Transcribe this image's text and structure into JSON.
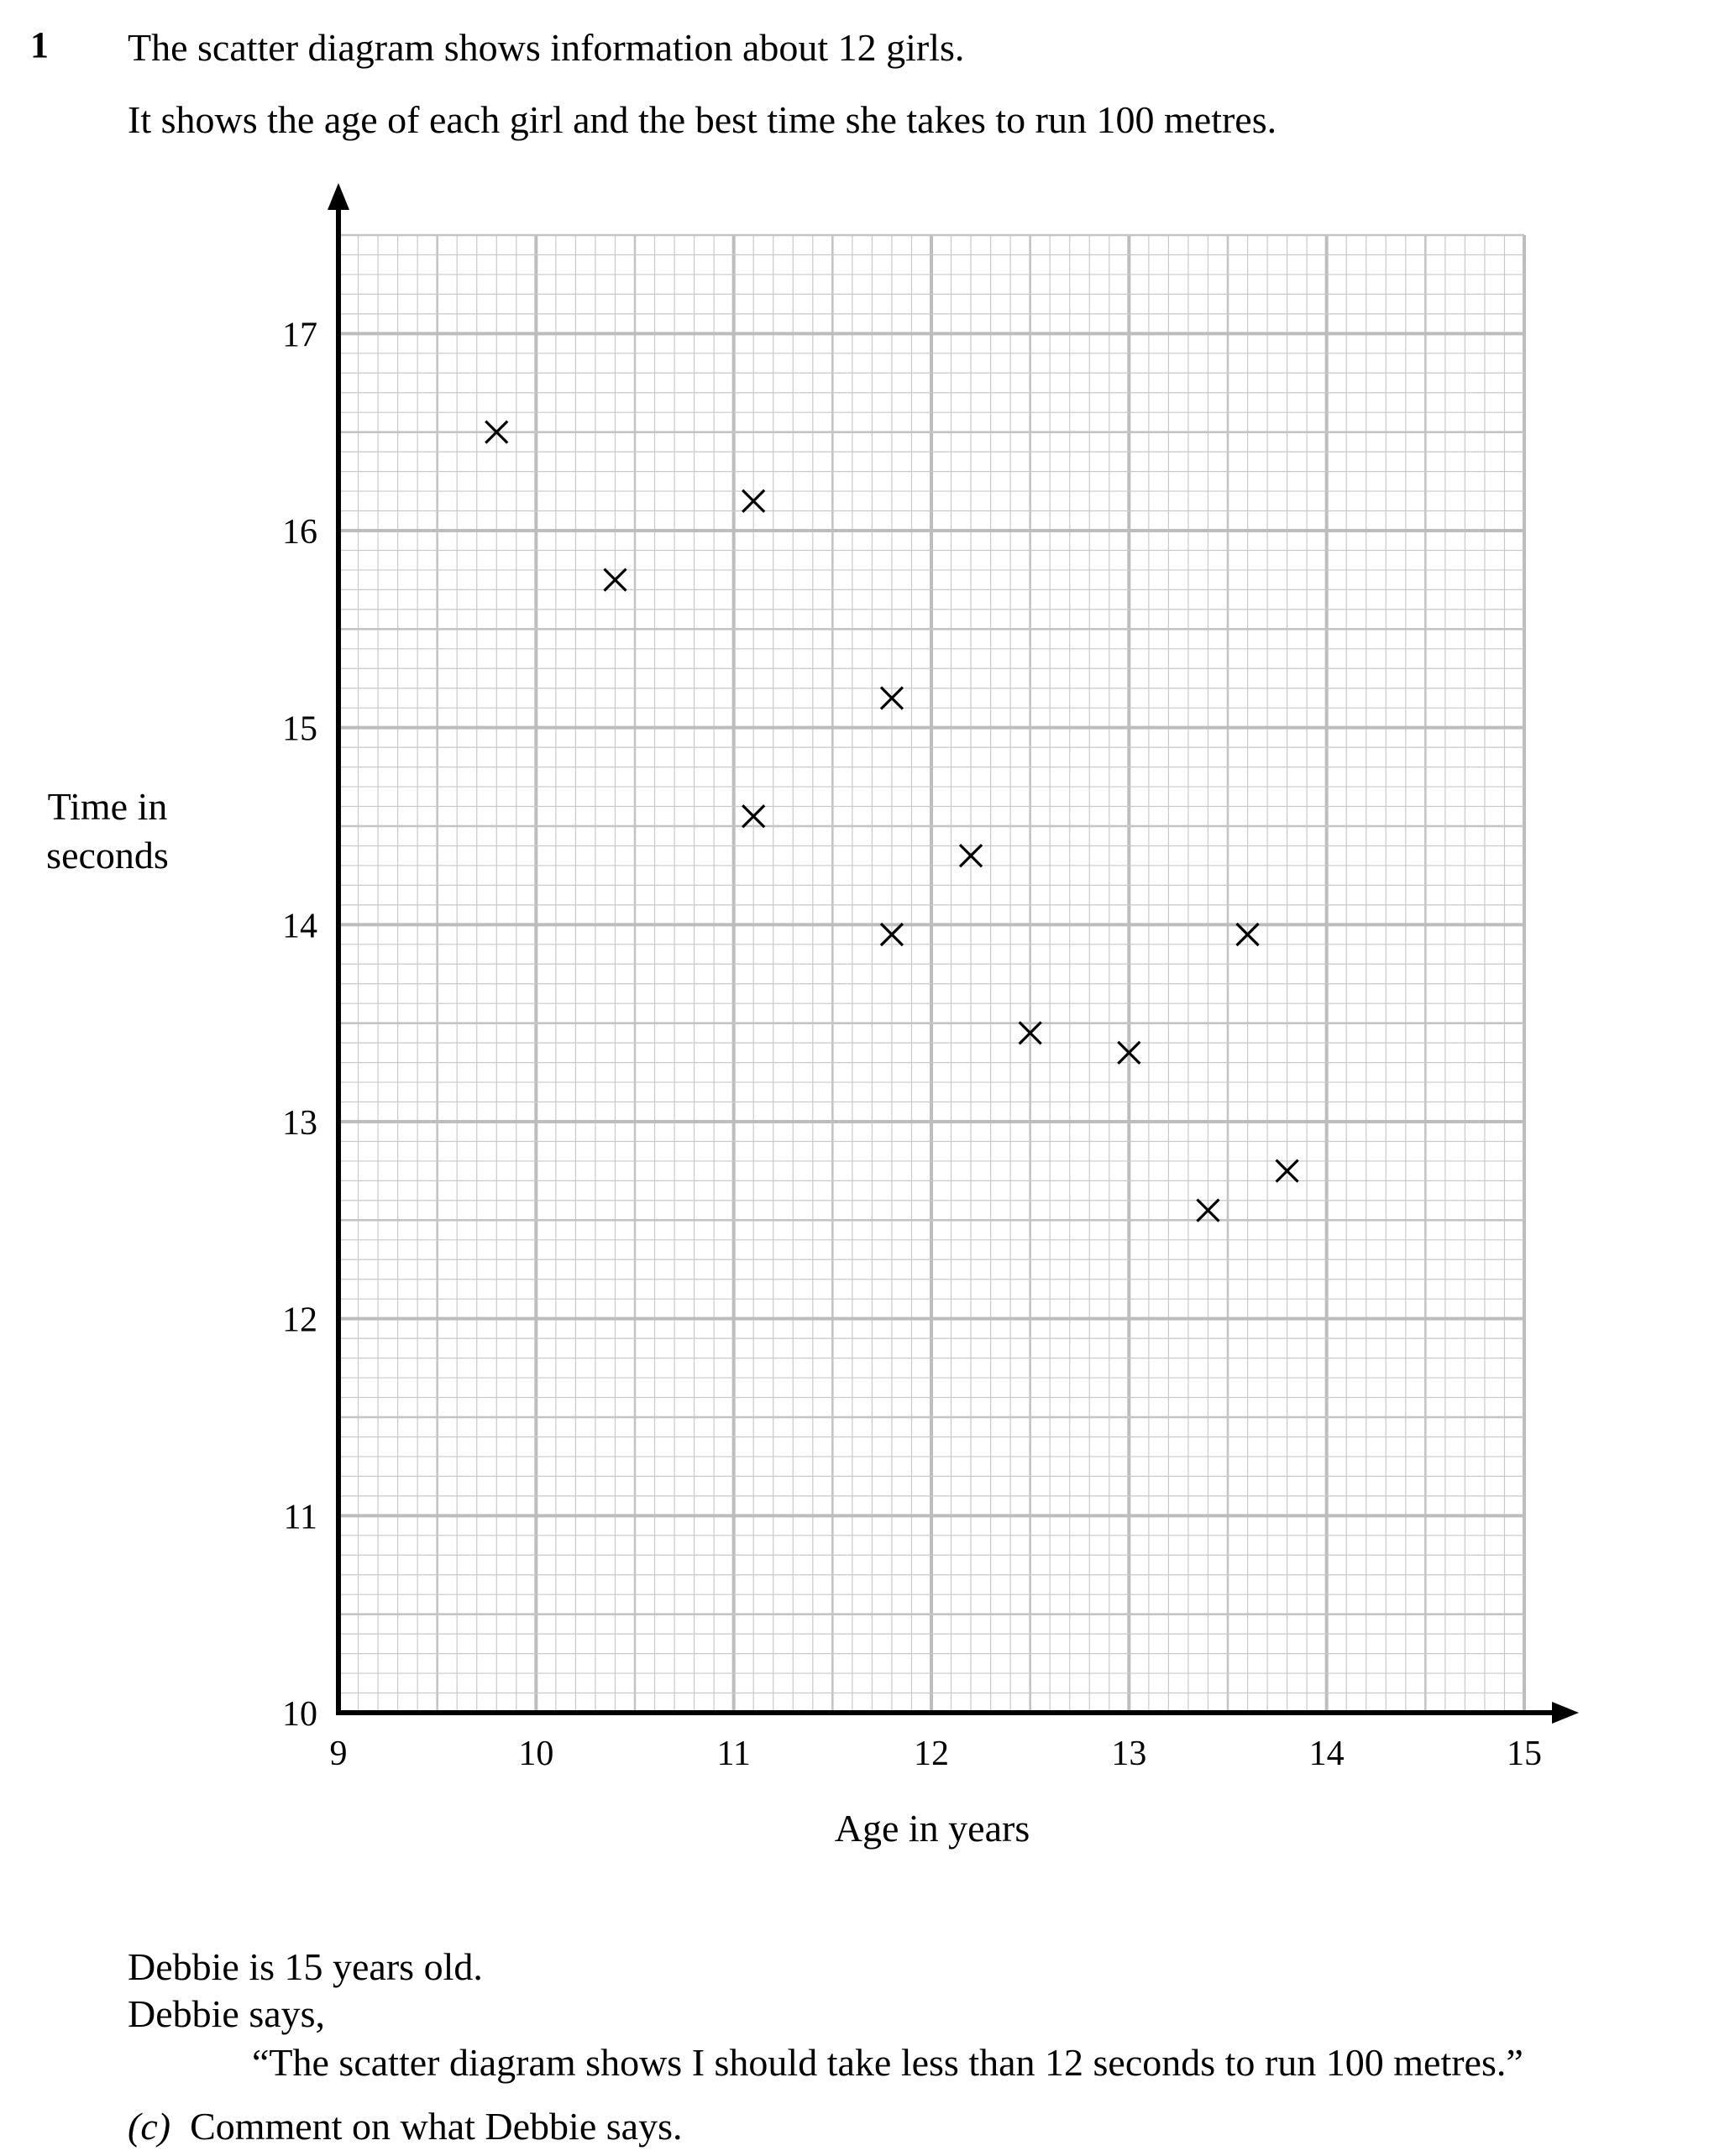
{
  "question": {
    "number": "1",
    "intro_line1": "The scatter diagram shows information about 12 girls.",
    "intro_line2": "It shows the age of each girl and the best time she takes to run 100 metres."
  },
  "chart_data": {
    "type": "scatter",
    "xlabel": "Age in years",
    "ylabel_line1": "Time in",
    "ylabel_line2": "seconds",
    "xlim": [
      9,
      15
    ],
    "ylim": [
      10,
      17.5
    ],
    "x_ticks": [
      9,
      10,
      11,
      12,
      13,
      14,
      15
    ],
    "y_ticks": [
      10,
      11,
      12,
      13,
      14,
      15,
      16,
      17
    ],
    "grid": true,
    "marker": "cross",
    "points": [
      {
        "x": 9.8,
        "y": 16.5
      },
      {
        "x": 10.4,
        "y": 15.75
      },
      {
        "x": 11.1,
        "y": 16.15
      },
      {
        "x": 11.1,
        "y": 14.55
      },
      {
        "x": 11.8,
        "y": 15.15
      },
      {
        "x": 11.8,
        "y": 13.95
      },
      {
        "x": 12.2,
        "y": 14.35
      },
      {
        "x": 12.5,
        "y": 13.45
      },
      {
        "x": 13.0,
        "y": 13.35
      },
      {
        "x": 13.4,
        "y": 12.55
      },
      {
        "x": 13.6,
        "y": 13.95
      },
      {
        "x": 13.8,
        "y": 12.75
      }
    ]
  },
  "statement": {
    "line1": "Debbie is 15 years old.",
    "line2": "Debbie says,",
    "quote": "“The scatter diagram shows I should take less than 12 seconds to run 100 metres.”",
    "part_label": "(c)",
    "part_text": "Comment on what Debbie says."
  }
}
